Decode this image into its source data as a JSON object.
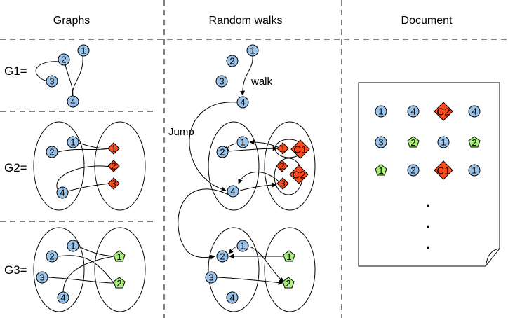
{
  "headers": {
    "graphs": "Graphs",
    "random_walks": "Random walks",
    "document": "Document"
  },
  "row_labels": {
    "g1": "G1=",
    "g2": "G2=",
    "g3": "G3="
  },
  "annotations": {
    "walk": "walk",
    "jump": "Jump"
  },
  "node_labels": {
    "g1": [
      "1",
      "2",
      "3",
      "4"
    ],
    "g2_left": [
      "1",
      "2",
      "4"
    ],
    "g2_right": [
      "1",
      "2",
      "3"
    ],
    "g3_left": [
      "1",
      "2",
      "3",
      "4"
    ],
    "g3_right": [
      "1",
      "2"
    ],
    "rw_top": [
      "1",
      "2",
      "3",
      "4"
    ],
    "rw_g2_left": [
      "1",
      "2",
      "4"
    ],
    "rw_g2_right": [
      "1",
      "2",
      "3"
    ],
    "rw_clusters": [
      "C1",
      "C2"
    ],
    "rw_g3_left": [
      "1",
      "2",
      "3",
      "4"
    ],
    "rw_g3_right": [
      "1",
      "2"
    ]
  },
  "document_rows": [
    [
      {
        "label": "1",
        "shape": "circle"
      },
      {
        "label": "4",
        "shape": "circle"
      },
      {
        "label": "C2",
        "shape": "diamond"
      },
      {
        "label": "4",
        "shape": "circle"
      }
    ],
    [
      {
        "label": "3",
        "shape": "circle"
      },
      {
        "label": "2",
        "shape": "pentagon"
      },
      {
        "label": "1",
        "shape": "circle"
      },
      {
        "label": "2",
        "shape": "pentagon"
      }
    ],
    [
      {
        "label": "1",
        "shape": "pentagon"
      },
      {
        "label": "2",
        "shape": "circle"
      },
      {
        "label": "C1",
        "shape": "diamond"
      },
      {
        "label": "1",
        "shape": "circle"
      }
    ]
  ],
  "document_ellipsis": "...",
  "colors": {
    "circle_fill": "#99c2e8",
    "diamond_fill": "#ff4a1c",
    "pentagon_fill": "#a8f07a",
    "stroke": "#000000",
    "background": "#ffffff"
  }
}
